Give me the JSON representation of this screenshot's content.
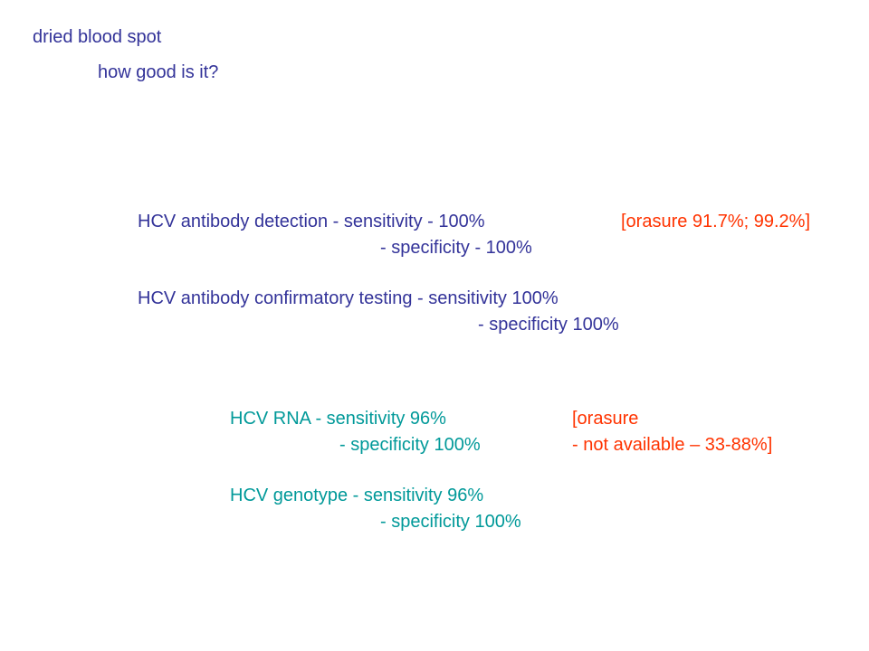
{
  "header": {
    "title": "dried blood spot",
    "subtitle": "how good is it?"
  },
  "antibody_detection": {
    "sensitivity": "HCV antibody detection - sensitivity - 100%",
    "specificity": "- specificity - 100%",
    "orasure": "[orasure 91.7%; 99.2%]"
  },
  "antibody_confirmatory": {
    "sensitivity": "HCV antibody confirmatory testing - sensitivity 100%",
    "specificity": "- specificity 100%"
  },
  "rna": {
    "sensitivity": "HCV RNA - sensitivity 96%",
    "specificity": "- specificity 100%",
    "orasure": [
      "[orasure",
      "- not available – 33-88%]"
    ]
  },
  "genotype": {
    "sensitivity": "HCV genotype - sensitivity 96%",
    "specificity": "- specificity 100%"
  }
}
